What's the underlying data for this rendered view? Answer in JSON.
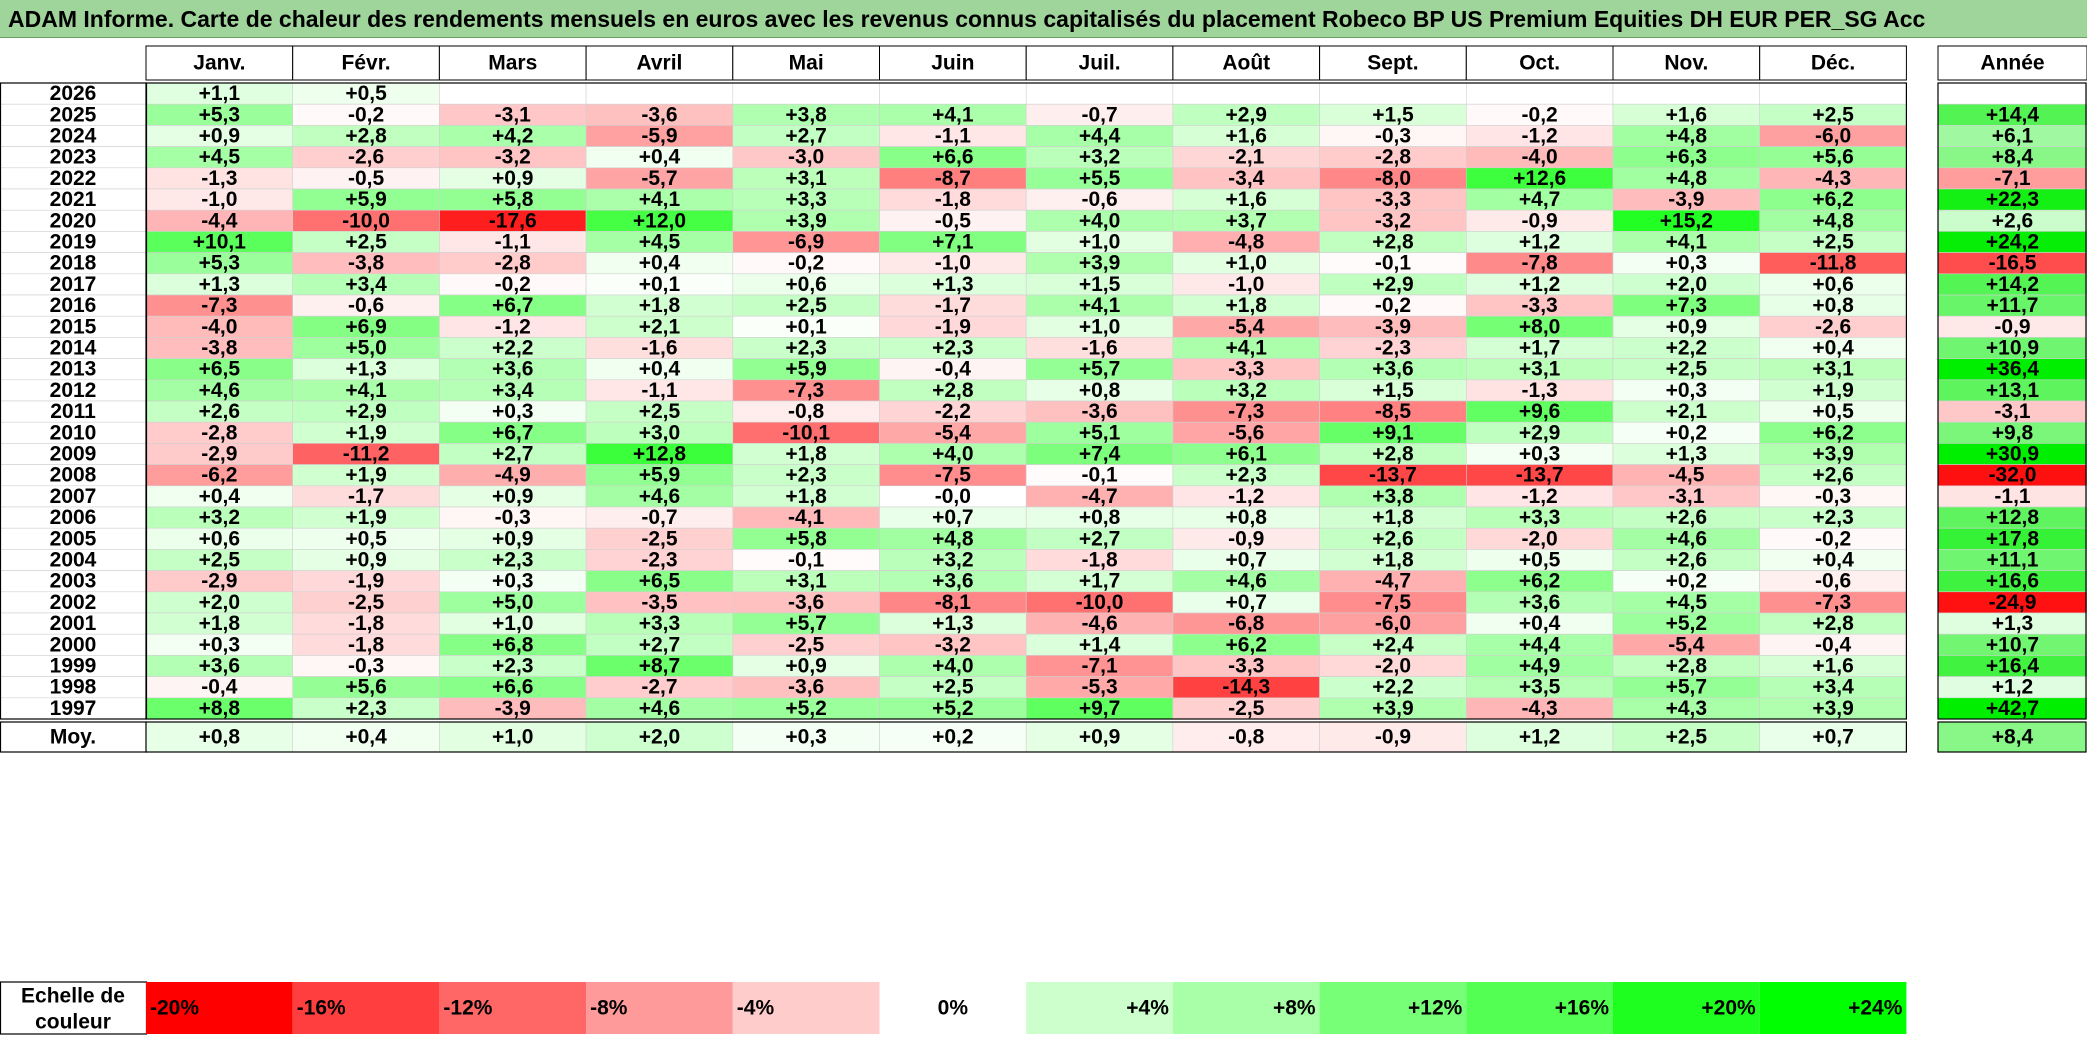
{
  "title": "ADAM Informe. Carte de chaleur des rendements mensuels en euros avec les revenus connus capitalisés du placement Robeco BP US Premium Equities DH EUR PER_SG Acc",
  "chart_data": {
    "type": "heatmap",
    "months": [
      "Janv.",
      "Févr.",
      "Mars",
      "Avril",
      "Mai",
      "Juin",
      "Juil.",
      "Août",
      "Sept.",
      "Oct.",
      "Nov.",
      "Déc."
    ],
    "annual_label": "Année",
    "average_label": "Moy.",
    "rows": [
      {
        "year": "2026",
        "months": [
          "+1,1",
          "+0,5",
          "",
          "",
          "",
          "",
          "",
          "",
          "",
          "",
          "",
          ""
        ],
        "annual": ""
      },
      {
        "year": "2025",
        "months": [
          "+5,3",
          "-0,2",
          "-3,1",
          "-3,6",
          "+3,8",
          "+4,1",
          "-0,7",
          "+2,9",
          "+1,5",
          "-0,2",
          "+1,6",
          "+2,5"
        ],
        "annual": "+14,4"
      },
      {
        "year": "2024",
        "months": [
          "+0,9",
          "+2,8",
          "+4,2",
          "-5,9",
          "+2,7",
          "-1,1",
          "+4,4",
          "+1,6",
          "-0,3",
          "-1,2",
          "+4,8",
          "-6,0"
        ],
        "annual": "+6,1"
      },
      {
        "year": "2023",
        "months": [
          "+4,5",
          "-2,6",
          "-3,2",
          "+0,4",
          "-3,0",
          "+6,6",
          "+3,2",
          "-2,1",
          "-2,8",
          "-4,0",
          "+6,3",
          "+5,6"
        ],
        "annual": "+8,4"
      },
      {
        "year": "2022",
        "months": [
          "-1,3",
          "-0,5",
          "+0,9",
          "-5,7",
          "+3,1",
          "-8,7",
          "+5,5",
          "-3,4",
          "-8,0",
          "+12,6",
          "+4,8",
          "-4,3"
        ],
        "annual": "-7,1"
      },
      {
        "year": "2021",
        "months": [
          "-1,0",
          "+5,9",
          "+5,8",
          "+4,1",
          "+3,3",
          "-1,8",
          "-0,6",
          "+1,6",
          "-3,3",
          "+4,7",
          "-3,9",
          "+6,2"
        ],
        "annual": "+22,3"
      },
      {
        "year": "2020",
        "months": [
          "-4,4",
          "-10,0",
          "-17,6",
          "+12,0",
          "+3,9",
          "-0,5",
          "+4,0",
          "+3,7",
          "-3,2",
          "-0,9",
          "+15,2",
          "+4,8"
        ],
        "annual": "+2,6"
      },
      {
        "year": "2019",
        "months": [
          "+10,1",
          "+2,5",
          "-1,1",
          "+4,5",
          "-6,9",
          "+7,1",
          "+1,0",
          "-4,8",
          "+2,8",
          "+1,2",
          "+4,1",
          "+2,5"
        ],
        "annual": "+24,2"
      },
      {
        "year": "2018",
        "months": [
          "+5,3",
          "-3,8",
          "-2,8",
          "+0,4",
          "-0,2",
          "-1,0",
          "+3,9",
          "+1,0",
          "-0,1",
          "-7,8",
          "+0,3",
          "-11,8"
        ],
        "annual": "-16,5"
      },
      {
        "year": "2017",
        "months": [
          "+1,3",
          "+3,4",
          "-0,2",
          "+0,1",
          "+0,6",
          "+1,3",
          "+1,5",
          "-1,0",
          "+2,9",
          "+1,2",
          "+2,0",
          "+0,6"
        ],
        "annual": "+14,2"
      },
      {
        "year": "2016",
        "months": [
          "-7,3",
          "-0,6",
          "+6,7",
          "+1,8",
          "+2,5",
          "-1,7",
          "+4,1",
          "+1,8",
          "-0,2",
          "-3,3",
          "+7,3",
          "+0,8"
        ],
        "annual": "+11,7"
      },
      {
        "year": "2015",
        "months": [
          "-4,0",
          "+6,9",
          "-1,2",
          "+2,1",
          "+0,1",
          "-1,9",
          "+1,0",
          "-5,4",
          "-3,9",
          "+8,0",
          "+0,9",
          "-2,6"
        ],
        "annual": "-0,9"
      },
      {
        "year": "2014",
        "months": [
          "-3,8",
          "+5,0",
          "+2,2",
          "-1,6",
          "+2,3",
          "+2,3",
          "-1,6",
          "+4,1",
          "-2,3",
          "+1,7",
          "+2,2",
          "+0,4"
        ],
        "annual": "+10,9"
      },
      {
        "year": "2013",
        "months": [
          "+6,5",
          "+1,3",
          "+3,6",
          "+0,4",
          "+5,9",
          "-0,4",
          "+5,7",
          "-3,3",
          "+3,6",
          "+3,1",
          "+2,5",
          "+3,1"
        ],
        "annual": "+36,4"
      },
      {
        "year": "2012",
        "months": [
          "+4,6",
          "+4,1",
          "+3,4",
          "-1,1",
          "-7,3",
          "+2,8",
          "+0,8",
          "+3,2",
          "+1,5",
          "-1,3",
          "+0,3",
          "+1,9"
        ],
        "annual": "+13,1"
      },
      {
        "year": "2011",
        "months": [
          "+2,6",
          "+2,9",
          "+0,3",
          "+2,5",
          "-0,8",
          "-2,2",
          "-3,6",
          "-7,3",
          "-8,5",
          "+9,6",
          "+2,1",
          "+0,5"
        ],
        "annual": "-3,1"
      },
      {
        "year": "2010",
        "months": [
          "-2,8",
          "+1,9",
          "+6,7",
          "+3,0",
          "-10,1",
          "-5,4",
          "+5,1",
          "-5,6",
          "+9,1",
          "+2,9",
          "+0,2",
          "+6,2"
        ],
        "annual": "+9,8"
      },
      {
        "year": "2009",
        "months": [
          "-2,9",
          "-11,2",
          "+2,7",
          "+12,8",
          "+1,8",
          "+4,0",
          "+7,4",
          "+6,1",
          "+2,8",
          "+0,3",
          "+1,3",
          "+3,9"
        ],
        "annual": "+30,9"
      },
      {
        "year": "2008",
        "months": [
          "-6,2",
          "+1,9",
          "-4,9",
          "+5,9",
          "+2,3",
          "-7,5",
          "-0,1",
          "+2,3",
          "-13,7",
          "-13,7",
          "-4,5",
          "+2,6"
        ],
        "annual": "-32,0"
      },
      {
        "year": "2007",
        "months": [
          "+0,4",
          "-1,7",
          "+0,9",
          "+4,6",
          "+1,8",
          "-0,0",
          "-4,7",
          "-1,2",
          "+3,8",
          "-1,2",
          "-3,1",
          "-0,3"
        ],
        "annual": "-1,1"
      },
      {
        "year": "2006",
        "months": [
          "+3,2",
          "+1,9",
          "-0,3",
          "-0,7",
          "-4,1",
          "+0,7",
          "+0,8",
          "+0,8",
          "+1,8",
          "+3,3",
          "+2,6",
          "+2,3"
        ],
        "annual": "+12,8"
      },
      {
        "year": "2005",
        "months": [
          "+0,6",
          "+0,5",
          "+0,9",
          "-2,5",
          "+5,8",
          "+4,8",
          "+2,7",
          "-0,9",
          "+2,6",
          "-2,0",
          "+4,6",
          "-0,2"
        ],
        "annual": "+17,8"
      },
      {
        "year": "2004",
        "months": [
          "+2,5",
          "+0,9",
          "+2,3",
          "-2,3",
          "-0,1",
          "+3,2",
          "-1,8",
          "+0,7",
          "+1,8",
          "+0,5",
          "+2,6",
          "+0,4"
        ],
        "annual": "+11,1"
      },
      {
        "year": "2003",
        "months": [
          "-2,9",
          "-1,9",
          "+0,3",
          "+6,5",
          "+3,1",
          "+3,6",
          "+1,7",
          "+4,6",
          "-4,7",
          "+6,2",
          "+0,2",
          "-0,6"
        ],
        "annual": "+16,6"
      },
      {
        "year": "2002",
        "months": [
          "+2,0",
          "-2,5",
          "+5,0",
          "-3,5",
          "-3,6",
          "-8,1",
          "-10,0",
          "+0,7",
          "-7,5",
          "+3,6",
          "+4,5",
          "-7,3"
        ],
        "annual": "-24,9"
      },
      {
        "year": "2001",
        "months": [
          "+1,8",
          "-1,8",
          "+1,0",
          "+3,3",
          "+5,7",
          "+1,3",
          "-4,6",
          "-6,8",
          "-6,0",
          "+0,4",
          "+5,2",
          "+2,8"
        ],
        "annual": "+1,3"
      },
      {
        "year": "2000",
        "months": [
          "+0,3",
          "-1,8",
          "+6,8",
          "+2,7",
          "-2,5",
          "-3,2",
          "+1,4",
          "+6,2",
          "+2,4",
          "+4,4",
          "-5,4",
          "-0,4"
        ],
        "annual": "+10,7"
      },
      {
        "year": "1999",
        "months": [
          "+3,6",
          "-0,3",
          "+2,3",
          "+8,7",
          "+0,9",
          "+4,0",
          "-7,1",
          "-3,3",
          "-2,0",
          "+4,9",
          "+2,8",
          "+1,6"
        ],
        "annual": "+16,4"
      },
      {
        "year": "1998",
        "months": [
          "-0,4",
          "+5,6",
          "+6,6",
          "-2,7",
          "-3,6",
          "+2,5",
          "-5,3",
          "-14,3",
          "+2,2",
          "+3,5",
          "+5,7",
          "+3,4"
        ],
        "annual": "+1,2"
      },
      {
        "year": "1997",
        "months": [
          "+8,8",
          "+2,3",
          "-3,9",
          "+4,6",
          "+5,2",
          "+5,2",
          "+9,7",
          "-2,5",
          "+3,9",
          "-4,3",
          "+4,3",
          "+3,9"
        ],
        "annual": "+42,7"
      }
    ],
    "average": {
      "months": [
        "+0,8",
        "+0,4",
        "+1,0",
        "+2,0",
        "+0,3",
        "+0,2",
        "+0,9",
        "-0,8",
        "-0,9",
        "+1,2",
        "+2,5",
        "+0,7"
      ],
      "annual": "+8,4"
    },
    "color_scale": {
      "label_line1": "Echelle de",
      "label_line2": "couleur",
      "steps": [
        "-20%",
        "-16%",
        "-12%",
        "-8%",
        "-4%",
        "0%",
        "+4%",
        "+8%",
        "+12%",
        "+16%",
        "+20%",
        "+24%"
      ],
      "colors": [
        "#ff0000",
        "#ff3f3f",
        "#ff6767",
        "#ff9a9a",
        "#ffcccc",
        "#ffffff",
        "#ccffcc",
        "#a8ffa8",
        "#77ff77",
        "#52ff52",
        "#1fff1f",
        "#00ff00"
      ]
    }
  }
}
